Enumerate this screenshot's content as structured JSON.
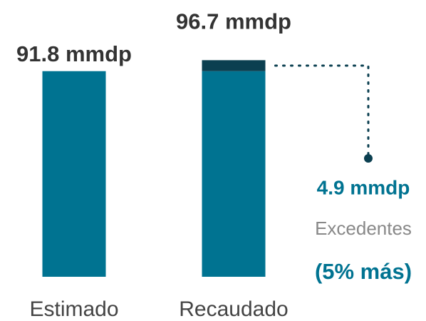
{
  "chart_data": {
    "type": "bar",
    "stacked": true,
    "categories": [
      "Estimado",
      "Recaudado"
    ],
    "series": [
      {
        "color": "#007391",
        "values": [
          91.8,
          91.8
        ]
      },
      {
        "name": "Excedentes",
        "color": "#0b3f50",
        "values": [
          null,
          4.9
        ],
        "value_labels": [
          null,
          "4.9 mmdp"
        ]
      }
    ],
    "totals": [
      91.8,
      96.7
    ],
    "total_labels": [
      "91.8 mmdp",
      "96.7 mmdp"
    ],
    "annotation": "(5% más)",
    "ylim": [
      0,
      100
    ]
  }
}
